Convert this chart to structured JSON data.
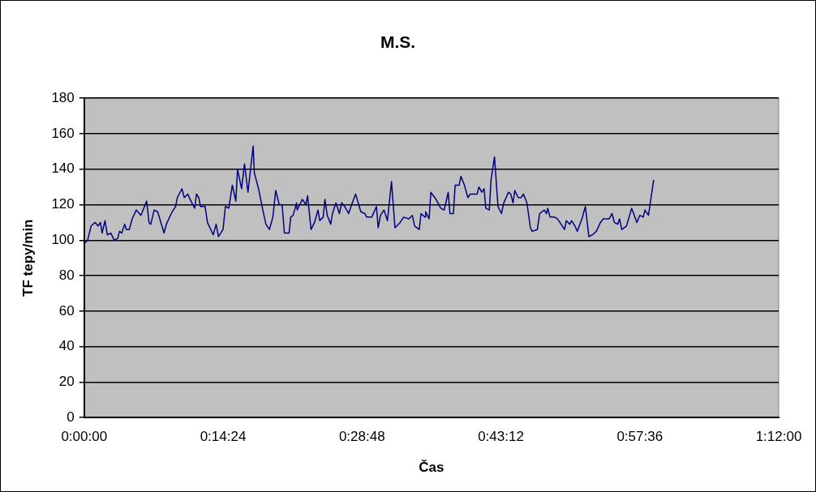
{
  "chart_data": {
    "type": "line",
    "title": "M.S.",
    "xlabel": "Čas",
    "ylabel": "TF tepy/min",
    "x": [
      0,
      0.006,
      0.012,
      0.019,
      0.024,
      0.028,
      0.031,
      0.036,
      0.04,
      0.046,
      0.052,
      0.058,
      0.061,
      0.065,
      0.07,
      0.073,
      0.078,
      0.083,
      0.09,
      0.098,
      0.108,
      0.112,
      0.115,
      0.121,
      0.127,
      0.138,
      0.142,
      0.152,
      0.158,
      0.161,
      0.169,
      0.173,
      0.179,
      0.183,
      0.191,
      0.194,
      0.198,
      0.201,
      0.209,
      0.213,
      0.223,
      0.228,
      0.232,
      0.24,
      0.244,
      0.25,
      0.256,
      0.262,
      0.265,
      0.272,
      0.277,
      0.283,
      0.292,
      0.294,
      0.302,
      0.308,
      0.314,
      0.32,
      0.326,
      0.331,
      0.337,
      0.342,
      0.346,
      0.354,
      0.357,
      0.361,
      0.367,
      0.368,
      0.377,
      0.383,
      0.386,
      0.392,
      0.398,
      0.404,
      0.407,
      0.413,
      0.416,
      0.42,
      0.426,
      0.429,
      0.435,
      0.441,
      0.445,
      0.45,
      0.457,
      0.462,
      0.469,
      0.478,
      0.485,
      0.488,
      0.497,
      0.505,
      0.508,
      0.512,
      0.518,
      0.524,
      0.531,
      0.537,
      0.546,
      0.552,
      0.561,
      0.567,
      0.571,
      0.579,
      0.582,
      0.589,
      0.59,
      0.596,
      0.599,
      0.608,
      0.616,
      0.622,
      0.629,
      0.632,
      0.638,
      0.641,
      0.648,
      0.651,
      0.657,
      0.663,
      0.667,
      0.679,
      0.682,
      0.687,
      0.691,
      0.694,
      0.7,
      0.703,
      0.709,
      0.715,
      0.721,
      0.725,
      0.733,
      0.737,
      0.741,
      0.744,
      0.75,
      0.755,
      0.759,
      0.765,
      0.771,
      0.774,
      0.783,
      0.787,
      0.795,
      0.799,
      0.801,
      0.805,
      0.813,
      0.818,
      0.83,
      0.833,
      0.839,
      0.842,
      0.848,
      0.852,
      0.86,
      0.866,
      0.872,
      0.878,
      0.885,
      0.892,
      0.897,
      0.907,
      0.912,
      0.916,
      0.922,
      0.925,
      0.929,
      0.937,
      0.946,
      0.955,
      0.96,
      0.966,
      0.969,
      0.975,
      0.984
    ],
    "series": [
      {
        "color": "#000080",
        "values": [
          98,
          100,
          108,
          110,
          108,
          110,
          104,
          111,
          103,
          104,
          100,
          101,
          105,
          104,
          109,
          106,
          106,
          112,
          117,
          114,
          122,
          110,
          109,
          117,
          116,
          104,
          109,
          116,
          119,
          124,
          129,
          124,
          126,
          123,
          118,
          126,
          124,
          119,
          119,
          110,
          103,
          109,
          102,
          106,
          119,
          118,
          131,
          122,
          140,
          129,
          143,
          127,
          153,
          138,
          128,
          118,
          109,
          106,
          113,
          128,
          120,
          120,
          104,
          104,
          113,
          114,
          121,
          117,
          123,
          120,
          125,
          106,
          110,
          117,
          111,
          113,
          123,
          114,
          109,
          115,
          121,
          115,
          121,
          119,
          115,
          120,
          126,
          116,
          115,
          113,
          113,
          119,
          107,
          114,
          117,
          111,
          133,
          107,
          110,
          113,
          112,
          114,
          108,
          106,
          115,
          113,
          116,
          112,
          127,
          123,
          118,
          117,
          127,
          115,
          115,
          131,
          131,
          136,
          131,
          124,
          126,
          126,
          130,
          127,
          129,
          118,
          117,
          134,
          147,
          119,
          115,
          121,
          127,
          126,
          121,
          128,
          124,
          124,
          126,
          121,
          107,
          105,
          106,
          115,
          117,
          115,
          118,
          113,
          113,
          112,
          106,
          111,
          109,
          111,
          108,
          105,
          112,
          119,
          102,
          103,
          105,
          110,
          112,
          112,
          115,
          110,
          109,
          112,
          106,
          108,
          118,
          110,
          114,
          113,
          117,
          114,
          134
        ]
      }
    ],
    "xlim": [
      0,
      1.2
    ],
    "xticks": [
      {
        "value": 0,
        "label": "0:00:00"
      },
      {
        "value": 0.24,
        "label": "0:14:24"
      },
      {
        "value": 0.48,
        "label": "0:28:48"
      },
      {
        "value": 0.72,
        "label": "0:43:12"
      },
      {
        "value": 0.96,
        "label": "0:57:36"
      },
      {
        "value": 1.2,
        "label": "1:12:00"
      }
    ],
    "ylim": [
      0,
      180
    ],
    "yticks": [
      0,
      20,
      40,
      60,
      80,
      100,
      120,
      140,
      160,
      180
    ],
    "grid": "y",
    "legend": false,
    "marker": "none",
    "line_style": "solid"
  }
}
